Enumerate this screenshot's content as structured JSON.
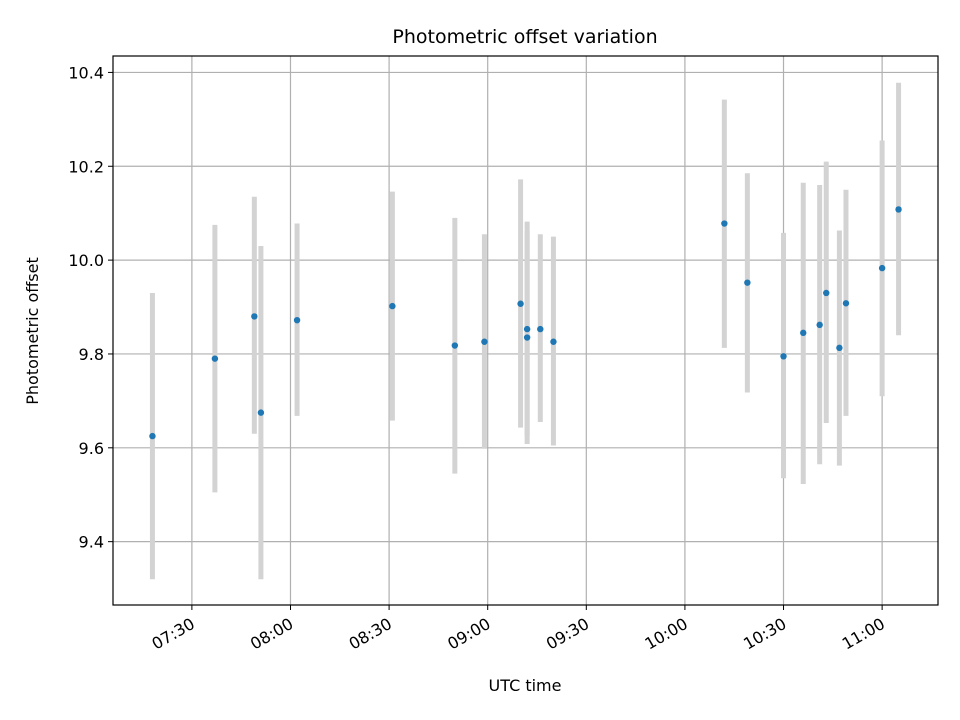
{
  "chart_data": {
    "type": "scatter",
    "title": "Photometric offset variation",
    "xlabel": "UTC time",
    "ylabel": "Photometric offset",
    "x_ticks": [
      "07:30",
      "08:00",
      "08:30",
      "09:00",
      "09:30",
      "10:00",
      "10:30",
      "11:00"
    ],
    "y_ticks": [
      "9.4",
      "9.6",
      "9.8",
      "10.0",
      "10.2",
      "10.4"
    ],
    "xlim": [
      "07:06",
      "11:17"
    ],
    "ylim": [
      9.265,
      10.435
    ],
    "grid": true,
    "colors": {
      "points": "#1f77b4",
      "errorbars": "#d3d3d3",
      "grid": "#b0b0b0"
    },
    "points": [
      {
        "time": "07:18",
        "value": 9.625,
        "err_low": 9.32,
        "err_high": 9.93
      },
      {
        "time": "07:37",
        "value": 9.79,
        "err_low": 9.505,
        "err_high": 10.075
      },
      {
        "time": "07:49",
        "value": 9.88,
        "err_low": 9.63,
        "err_high": 10.135
      },
      {
        "time": "07:51",
        "value": 9.675,
        "err_low": 9.32,
        "err_high": 10.03
      },
      {
        "time": "08:02",
        "value": 9.872,
        "err_low": 9.668,
        "err_high": 10.078
      },
      {
        "time": "08:31",
        "value": 9.902,
        "err_low": 9.658,
        "err_high": 10.146
      },
      {
        "time": "08:50",
        "value": 9.818,
        "err_low": 9.545,
        "err_high": 10.09
      },
      {
        "time": "08:59",
        "value": 9.826,
        "err_low": 9.598,
        "err_high": 10.055
      },
      {
        "time": "09:10",
        "value": 9.907,
        "err_low": 9.643,
        "err_high": 10.172
      },
      {
        "time": "09:12",
        "value": 9.853,
        "err_low": 9.625,
        "err_high": 10.082
      },
      {
        "time": "09:12",
        "value": 9.835,
        "err_low": 9.608,
        "err_high": 10.062
      },
      {
        "time": "09:16",
        "value": 9.853,
        "err_low": 9.655,
        "err_high": 10.055
      },
      {
        "time": "09:20",
        "value": 9.826,
        "err_low": 9.605,
        "err_high": 10.05
      },
      {
        "time": "10:12",
        "value": 10.078,
        "err_low": 9.813,
        "err_high": 10.342
      },
      {
        "time": "10:19",
        "value": 9.952,
        "err_low": 9.718,
        "err_high": 10.185
      },
      {
        "time": "10:30",
        "value": 9.795,
        "err_low": 9.535,
        "err_high": 10.058
      },
      {
        "time": "10:36",
        "value": 9.845,
        "err_low": 9.523,
        "err_high": 10.165
      },
      {
        "time": "10:41",
        "value": 9.862,
        "err_low": 9.565,
        "err_high": 10.16
      },
      {
        "time": "10:43",
        "value": 9.93,
        "err_low": 9.653,
        "err_high": 10.21
      },
      {
        "time": "10:47",
        "value": 9.813,
        "err_low": 9.562,
        "err_high": 10.063
      },
      {
        "time": "10:49",
        "value": 9.908,
        "err_low": 9.668,
        "err_high": 10.15
      },
      {
        "time": "11:00",
        "value": 9.983,
        "err_low": 9.71,
        "err_high": 10.255
      },
      {
        "time": "11:05",
        "value": 10.108,
        "err_low": 9.84,
        "err_high": 10.378
      }
    ]
  }
}
